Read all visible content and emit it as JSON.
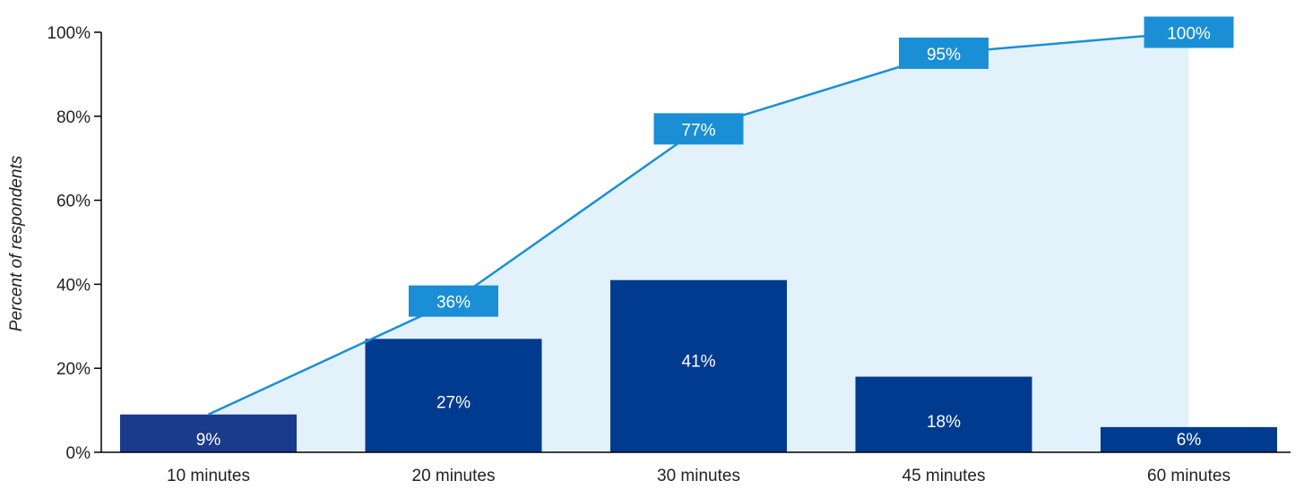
{
  "chart_data": {
    "type": "bar",
    "categories": [
      "10 minutes",
      "20 minutes",
      "30 minutes",
      "45 minutes",
      "60 minutes"
    ],
    "series": [
      {
        "values": [
          9,
          27,
          41,
          18,
          6
        ],
        "labels": [
          "9%",
          "27%",
          "41%",
          "18%",
          "6%"
        ],
        "kind": "bar"
      },
      {
        "values": [
          9,
          36,
          77,
          95,
          100
        ],
        "labels": [
          "",
          "36%",
          "77%",
          "95%",
          "100%"
        ],
        "kind": "cumulative-line-area"
      }
    ],
    "ylabel": "Percent of respondents",
    "ylim": [
      0,
      100
    ],
    "yticks": [
      0,
      20,
      40,
      60,
      80,
      100
    ],
    "ytick_labels": [
      "0%",
      "20%",
      "40%",
      "60%",
      "80%",
      "100%"
    ],
    "grid": false,
    "colors": {
      "bar": "#003b8f",
      "bar_first": "#1a3a8c",
      "line": "#1b8fd6",
      "area": "#e3f2fa",
      "cum_label_bg": "#1b8fd6"
    }
  }
}
